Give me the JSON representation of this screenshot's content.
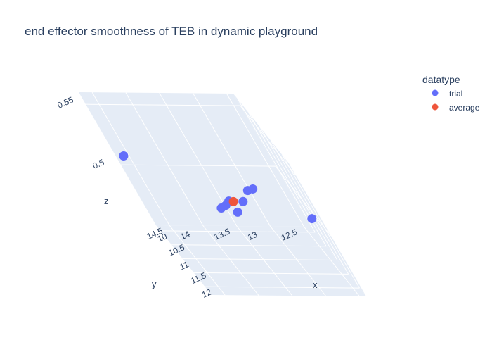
{
  "chart_data": {
    "type": "scatter",
    "title": "end effector smoothness of TEB in dynamic playground",
    "axes": {
      "x": {
        "label": "x",
        "ticks": [
          "10",
          "10.5",
          "11",
          "11.5",
          "12"
        ],
        "range": [
          9.8,
          12.3
        ]
      },
      "y": {
        "label": "y",
        "ticks": [
          "12.5",
          "13",
          "13.5",
          "14",
          "14.5"
        ],
        "range": [
          12.4,
          14.7
        ]
      },
      "z": {
        "label": "z",
        "ticks": [
          "0.5",
          "0.55"
        ],
        "range": [
          0.45,
          0.56
        ]
      }
    },
    "legend": {
      "title": "datatype",
      "placement": "top-right"
    },
    "series": [
      {
        "name": "trial",
        "color": "#636efa",
        "points": [
          {
            "x": 11.9,
            "y": 12.5,
            "z": 0.505
          },
          {
            "x": 10.0,
            "y": 14.6,
            "z": 0.512
          },
          {
            "x": 11.1,
            "y": 13.6,
            "z": 0.497
          },
          {
            "x": 10.9,
            "y": 13.5,
            "z": 0.496
          },
          {
            "x": 11.3,
            "y": 13.5,
            "z": 0.496
          },
          {
            "x": 11.2,
            "y": 13.7,
            "z": 0.497
          },
          {
            "x": 11.0,
            "y": 13.3,
            "z": 0.498
          },
          {
            "x": 10.6,
            "y": 13.1,
            "z": 0.498
          },
          {
            "x": 10.5,
            "y": 13.0,
            "z": 0.497
          }
        ]
      },
      {
        "name": "average",
        "color": "#ef553b",
        "points": [
          {
            "x": 11.05,
            "y": 13.45,
            "z": 0.499
          }
        ]
      }
    ]
  }
}
